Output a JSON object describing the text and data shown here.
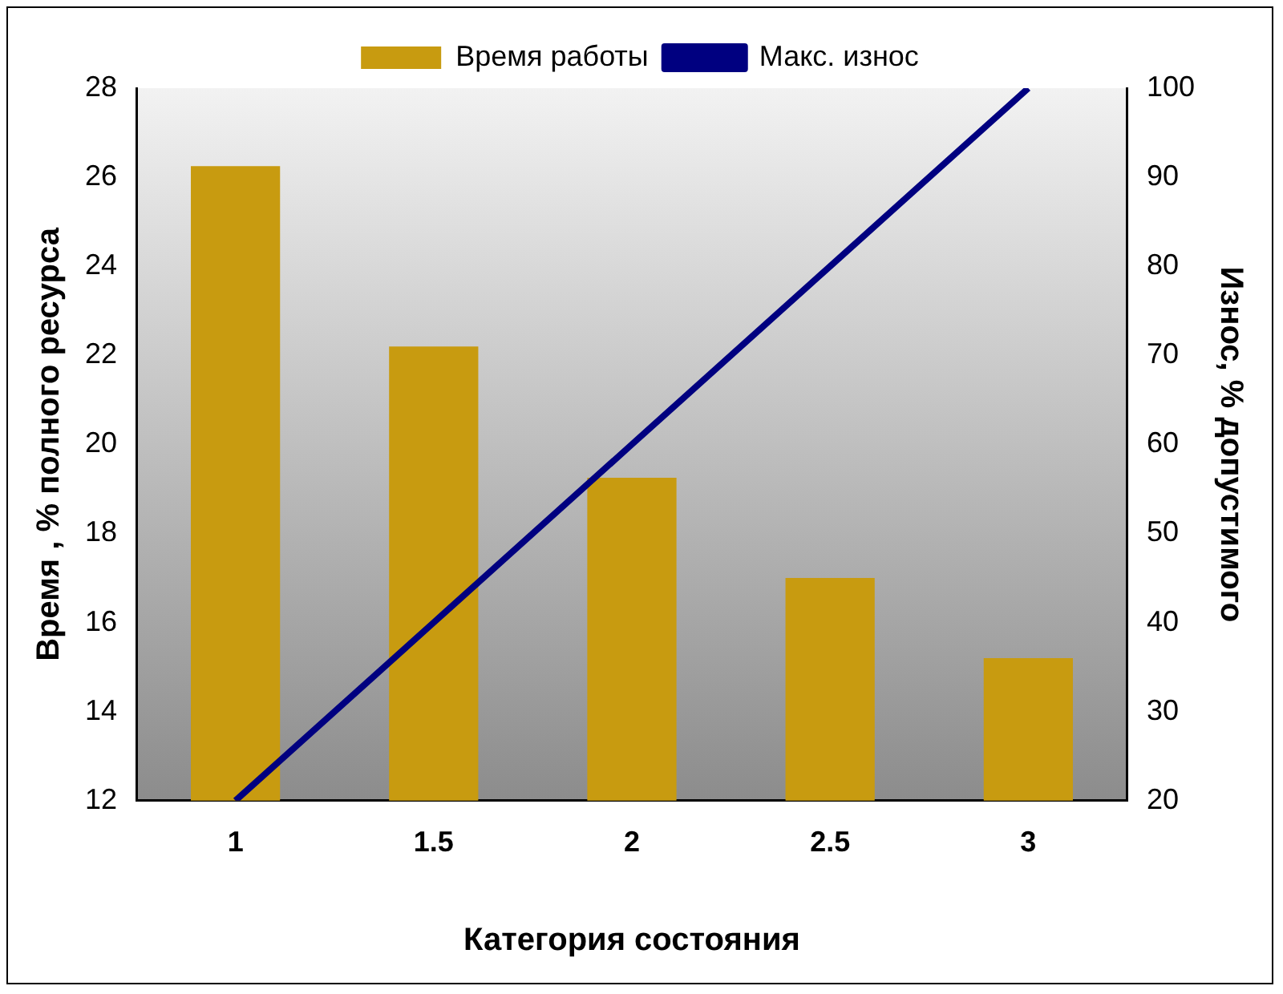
{
  "chart_data": {
    "type": "bar",
    "categories": [
      "1",
      "1.5",
      "2",
      "2.5",
      "3"
    ],
    "xlabel": "Категория состояния",
    "ylabel": "Время , % полного ресурса",
    "y2label": "Износ, % допустимого",
    "series": [
      {
        "name": "Время работы",
        "color": "#c89b10",
        "values": [
          26.25,
          22.2,
          19.25,
          17.0,
          15.2
        ]
      },
      {
        "name": "Макс. износ",
        "type": "line",
        "axis": "y2",
        "color": "#000080",
        "values": [
          20,
          40,
          60,
          80,
          100
        ]
      }
    ],
    "ylim": [
      12,
      28
    ],
    "yticks": [
      12,
      14,
      16,
      18,
      20,
      22,
      24,
      26,
      28
    ],
    "y2lim": [
      20,
      100
    ],
    "y2ticks": [
      20,
      30,
      40,
      50,
      60,
      70,
      80,
      90,
      100
    ],
    "grid": false,
    "legend": "top",
    "marker": "none",
    "line_style": "solid"
  }
}
